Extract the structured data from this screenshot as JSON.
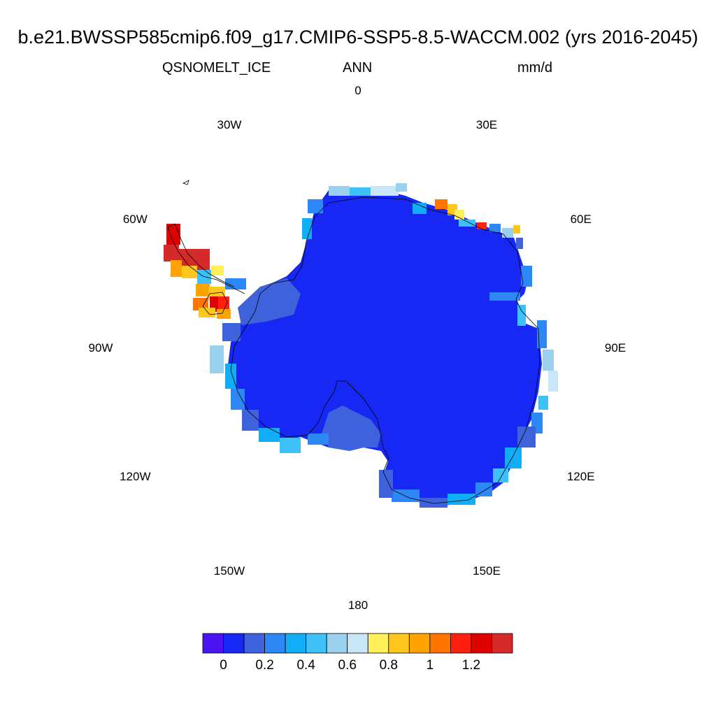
{
  "header": {
    "title": "b.e21.BWSSP585cmip6.f09_g17.CMIP6-SSP5-8.5-WACCM.002 (yrs 2016-2045)",
    "variable": "QSNOMELT_ICE",
    "period": "ANN",
    "units": "mm/d"
  },
  "map": {
    "projection": "south-polar-stereographic",
    "region": "Antarctica",
    "longitude_labels": [
      {
        "lon": 0,
        "text": "0"
      },
      {
        "lon": 30,
        "text": "30E"
      },
      {
        "lon": 60,
        "text": "60E"
      },
      {
        "lon": 90,
        "text": "90E"
      },
      {
        "lon": 120,
        "text": "120E"
      },
      {
        "lon": 150,
        "text": "150E"
      },
      {
        "lon": 180,
        "text": "180"
      },
      {
        "lon": -150,
        "text": "150W"
      },
      {
        "lon": -120,
        "text": "120W"
      },
      {
        "lon": -90,
        "text": "90W"
      },
      {
        "lon": -60,
        "text": "60W"
      },
      {
        "lon": -30,
        "text": "30W"
      }
    ],
    "interior_value_range": [
      0.0,
      0.1
    ],
    "peninsula_max_value": 1.3
  },
  "colorbar": {
    "colors": [
      "#4a14f0",
      "#1728f5",
      "#3e62dc",
      "#2d87f5",
      "#11adf6",
      "#3dc1f8",
      "#9bd0ed",
      "#c8e6f7",
      "#fff05b",
      "#ffc71d",
      "#ffa300",
      "#ff7500",
      "#ff2010",
      "#df0000",
      "#d52a2a"
    ],
    "boundaries": [
      0,
      0.1,
      0.2,
      0.3,
      0.4,
      0.5,
      0.6,
      0.7,
      0.8,
      0.9,
      1.0,
      1.1,
      1.2,
      1.3
    ],
    "labels": [
      {
        "value": 0,
        "text": "0"
      },
      {
        "value": 0.2,
        "text": "0.2"
      },
      {
        "value": 0.4,
        "text": "0.4"
      },
      {
        "value": 0.6,
        "text": "0.6"
      },
      {
        "value": 0.8,
        "text": "0.8"
      },
      {
        "value": 1.0,
        "text": "1"
      },
      {
        "value": 1.2,
        "text": "1.2"
      }
    ]
  }
}
